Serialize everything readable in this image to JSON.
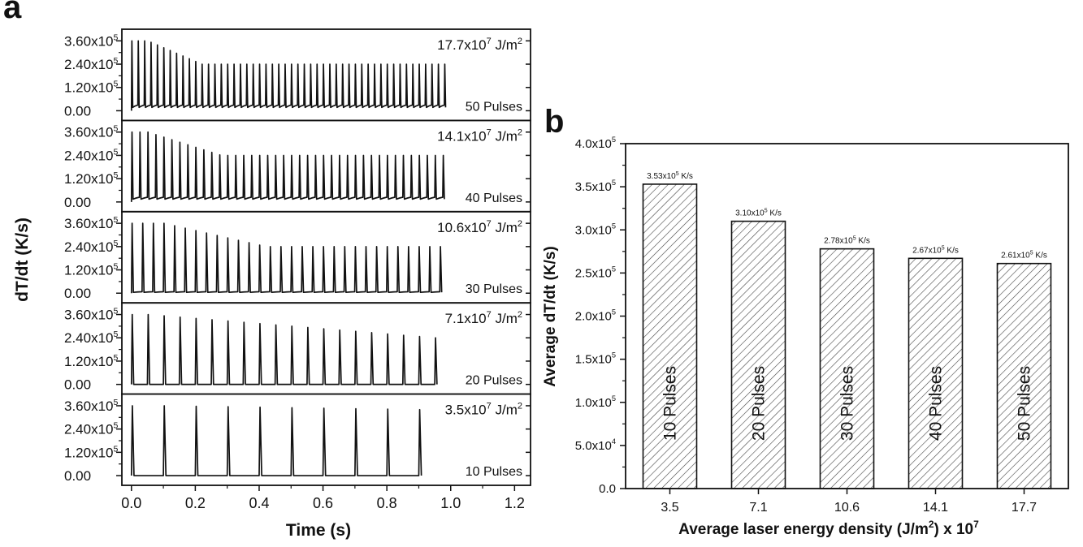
{
  "chart_data": [
    {
      "type": "line",
      "panel_label": "a",
      "xlabel": "Time (s)",
      "ylabel": "dT/dt (K/s)",
      "x_ticks": [
        "0.0",
        "0.2",
        "0.4",
        "0.6",
        "0.8",
        "1.0",
        "1.2"
      ],
      "xlim": [
        -0.03,
        1.25
      ],
      "y_ticks": [
        "0.00",
        "1.20x10^5",
        "2.40x10^5",
        "3.60x10^5"
      ],
      "ylim": [
        -50000,
        420000
      ],
      "subplots": [
        {
          "energy_mantissa": "17.7x10",
          "energy_exp": "7",
          "energy_unit": " J/m",
          "energy_unit_exp": "2",
          "pulses_label": "50 Pulses",
          "pulses": 50,
          "interval": 0.02,
          "peak": 360000,
          "steady": 240000,
          "transition_start": 0.05,
          "transition_end": 0.22,
          "pulse_width": 0.004,
          "baseline_lift": 0.12
        },
        {
          "energy_mantissa": "14.1x10",
          "energy_exp": "7",
          "energy_unit": " J/m",
          "energy_unit_exp": "2",
          "pulses_label": "40 Pulses",
          "pulses": 40,
          "interval": 0.025,
          "peak": 360000,
          "steady": 240000,
          "transition_start": 0.05,
          "transition_end": 0.28,
          "pulse_width": 0.005,
          "baseline_lift": 0.1
        },
        {
          "energy_mantissa": "10.6x10",
          "energy_exp": "7",
          "energy_unit": " J/m",
          "energy_unit_exp": "2",
          "pulses_label": "30 Pulses",
          "pulses": 30,
          "interval": 0.0333,
          "peak": 360000,
          "steady": 240000,
          "transition_start": 0.1,
          "transition_end": 0.42,
          "pulse_width": 0.006,
          "baseline_lift": 0.03
        },
        {
          "energy_mantissa": "7.1x10",
          "energy_exp": "7",
          "energy_unit": " J/m",
          "energy_unit_exp": "2",
          "pulses_label": "20 Pulses",
          "pulses": 20,
          "interval": 0.05,
          "peak": 360000,
          "steady": 240000,
          "transition_start": 0.05,
          "transition_end": 0.95,
          "pulse_width": 0.007,
          "baseline_lift": 0.0
        },
        {
          "energy_mantissa": "3.5x10",
          "energy_exp": "7",
          "energy_unit": " J/m",
          "energy_unit_exp": "2",
          "pulses_label": "10 Pulses",
          "pulses": 10,
          "interval": 0.1,
          "peak": 360000,
          "steady": 340000,
          "transition_start": 0.1,
          "transition_end": 0.9,
          "pulse_width": 0.008,
          "baseline_lift": 0.0
        }
      ]
    },
    {
      "type": "bar",
      "panel_label": "b",
      "xlabel_pre": "Average laser energy density (J/m",
      "xlabel_sup": "2",
      "xlabel_post": ") x 10",
      "xlabel_sup2": "7",
      "ylabel": "Average dT/dt (K/s)",
      "categories": [
        "3.5",
        "7.1",
        "10.6",
        "14.1",
        "17.7"
      ],
      "values": [
        353000,
        310000,
        278000,
        267000,
        261000
      ],
      "value_labels": [
        {
          "mantissa": "3.53x10",
          "exp": "5",
          "unit": " K/s"
        },
        {
          "mantissa": "3.10x10",
          "exp": "5",
          "unit": " K/s"
        },
        {
          "mantissa": "2.78x10",
          "exp": "5",
          "unit": " K/s"
        },
        {
          "mantissa": "2.67x10",
          "exp": "5",
          "unit": " K/s"
        },
        {
          "mantissa": "2.61x10",
          "exp": "5",
          "unit": " K/s"
        }
      ],
      "bar_labels": [
        "10 Pulses",
        "20 Pulses",
        "30 Pulses",
        "40 Pulses",
        "50 Pulses"
      ],
      "ylim": [
        0,
        400000
      ],
      "y_ticks": [
        {
          "mantissa": "0.0",
          "exp": ""
        },
        {
          "mantissa": "5.0x10",
          "exp": "4"
        },
        {
          "mantissa": "1.0x10",
          "exp": "5"
        },
        {
          "mantissa": "1.5x10",
          "exp": "5"
        },
        {
          "mantissa": "2.0x10",
          "exp": "5"
        },
        {
          "mantissa": "2.5x10",
          "exp": "5"
        },
        {
          "mantissa": "3.0x10",
          "exp": "5"
        },
        {
          "mantissa": "3.5x10",
          "exp": "5"
        },
        {
          "mantissa": "4.0x10",
          "exp": "5"
        }
      ],
      "bar_fill_pattern": "diagonal-hatch",
      "colors": {
        "line": "#111111",
        "hatch": "#444444"
      }
    }
  ]
}
